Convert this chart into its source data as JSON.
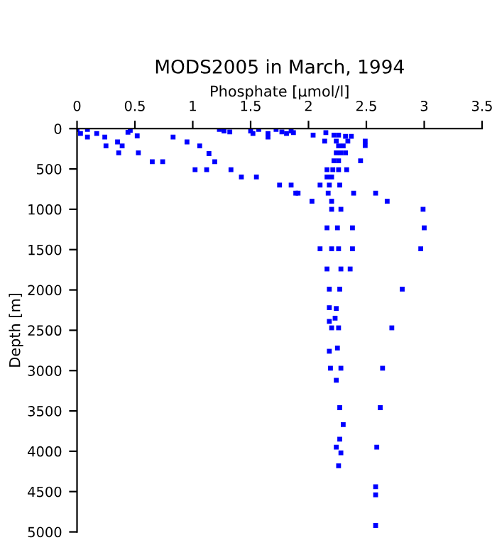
{
  "chart_data": {
    "type": "scatter",
    "title": "MODS2005 in March, 1994",
    "xlabel": "Phosphate [µmol/l]",
    "ylabel": "Depth [m]",
    "xlim": [
      0,
      3.5
    ],
    "xticks": [
      0,
      0.5,
      1,
      1.5,
      2,
      2.5,
      3,
      3.5
    ],
    "ylim": [
      5000,
      0
    ],
    "yticks": [
      0,
      500,
      1000,
      1500,
      2000,
      2500,
      3000,
      3500,
      4000,
      4500,
      5000
    ],
    "grid": false,
    "marker": "square",
    "series": [
      {
        "color": "#0000ff",
        "x": [
          0.0,
          0.03,
          0.09,
          0.09,
          0.17,
          0.24,
          0.25,
          0.35,
          0.36,
          0.39,
          0.44,
          0.46,
          0.52,
          0.53,
          0.65,
          0.74,
          0.83,
          0.95,
          1.02,
          1.06,
          1.12,
          1.14,
          1.19,
          1.23,
          1.27,
          1.32,
          1.33,
          1.42,
          1.5,
          1.52,
          1.55,
          1.57,
          1.65,
          1.65,
          1.72,
          1.75,
          1.77,
          1.81,
          1.85,
          1.85,
          1.89,
          1.87,
          2.04,
          2.15,
          2.14,
          2.22,
          2.26,
          2.32,
          2.37,
          2.24,
          2.34,
          2.49,
          2.49,
          2.26,
          2.3,
          2.24,
          2.28,
          2.32,
          2.22,
          2.26,
          2.45,
          2.16,
          2.21,
          2.26,
          2.33,
          2.16,
          2.2,
          2.1,
          2.18,
          2.27,
          1.91,
          2.17,
          2.39,
          2.58,
          2.03,
          2.2,
          2.68,
          2.2,
          2.28,
          2.99,
          2.16,
          2.25,
          2.38,
          3.0,
          2.1,
          2.2,
          2.26,
          2.38,
          2.97,
          2.16,
          2.28,
          2.36,
          2.18,
          2.27,
          2.81,
          2.18,
          2.24,
          2.23,
          2.18,
          2.2,
          2.26,
          2.72,
          2.18,
          2.25,
          2.19,
          2.28,
          2.64,
          2.24,
          2.27,
          2.62,
          2.3,
          2.27,
          2.24,
          2.59,
          2.28,
          2.26,
          2.58,
          2.58,
          2.58
        ],
        "values": [
          10,
          60,
          10,
          105,
          60,
          105,
          215,
          165,
          300,
          215,
          45,
          20,
          90,
          300,
          410,
          410,
          105,
          165,
          510,
          215,
          510,
          310,
          410,
          10,
          30,
          40,
          510,
          600,
          30,
          60,
          600,
          10,
          60,
          105,
          10,
          700,
          40,
          60,
          30,
          700,
          800,
          50,
          80,
          50,
          155,
          80,
          80,
          95,
          95,
          155,
          155,
          155,
          210,
          215,
          215,
          300,
          300,
          300,
          400,
          400,
          400,
          510,
          510,
          510,
          510,
          600,
          600,
          700,
          700,
          700,
          800,
          800,
          800,
          800,
          900,
          900,
          900,
          1000,
          1000,
          1000,
          1230,
          1230,
          1230,
          1230,
          1490,
          1490,
          1490,
          1490,
          1490,
          1740,
          1740,
          1740,
          1990,
          1990,
          1990,
          2220,
          2230,
          2350,
          2390,
          2470,
          2470,
          2470,
          2760,
          2720,
          2970,
          2970,
          2970,
          3120,
          3460,
          3460,
          3670,
          3850,
          3950,
          3950,
          4020,
          4180,
          4440,
          4540,
          4920
        ]
      }
    ]
  }
}
